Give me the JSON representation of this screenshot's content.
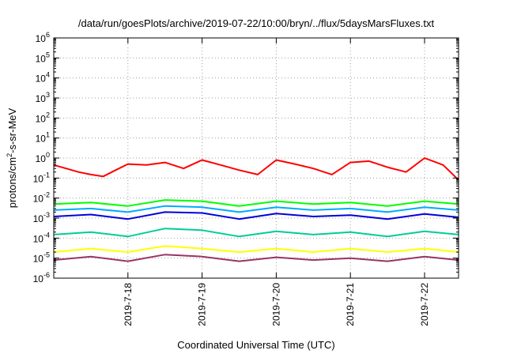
{
  "chart_data": {
    "type": "line",
    "title": "/data/run/goesPlots/archive/2019-07-22/10:00/bryn/../flux/5daysMarsFluxes.txt",
    "xlabel": "Coordinated Universal Time (UTC)",
    "ylabel": {
      "pre": "protons/cm",
      "sup": "2",
      "post": "-s-sr-MeV"
    },
    "yscale": "log",
    "ylim": [
      1e-06,
      1000000.0
    ],
    "y_ticks": [
      {
        "base": "10",
        "exp": "6"
      },
      {
        "base": "10",
        "exp": "5"
      },
      {
        "base": "10",
        "exp": "4"
      },
      {
        "base": "10",
        "exp": "3"
      },
      {
        "base": "10",
        "exp": "2"
      },
      {
        "base": "10",
        "exp": "1"
      },
      {
        "base": "10",
        "exp": "0"
      },
      {
        "base": "10",
        "exp": "-1"
      },
      {
        "base": "10",
        "exp": "-2"
      },
      {
        "base": "10",
        "exp": "-3"
      },
      {
        "base": "10",
        "exp": "-4"
      },
      {
        "base": "10",
        "exp": "-5"
      },
      {
        "base": "10",
        "exp": "-6"
      }
    ],
    "xlim": [
      "2019-07-17 00:00",
      "2019-07-22 11:00"
    ],
    "x_ticks": [
      "2019-7-18",
      "2019-7-19",
      "2019-7-20",
      "2019-7-21",
      "2019-7-22"
    ],
    "grid": true,
    "series": [
      {
        "color": "#ff0000",
        "x": [
          "2019-07-17 00:00",
          "2019-07-17 04:00",
          "2019-07-17 08:00",
          "2019-07-17 12:00",
          "2019-07-17 16:00",
          "2019-07-17 20:00",
          "2019-07-18 00:00",
          "2019-07-18 06:00",
          "2019-07-18 12:00",
          "2019-07-18 18:00",
          "2019-07-19 00:00",
          "2019-07-19 06:00",
          "2019-07-19 12:00",
          "2019-07-19 18:00",
          "2019-07-20 00:00",
          "2019-07-20 06:00",
          "2019-07-20 12:00",
          "2019-07-20 18:00",
          "2019-07-21 00:00",
          "2019-07-21 06:00",
          "2019-07-21 12:00",
          "2019-07-21 18:00",
          "2019-07-22 00:00",
          "2019-07-22 06:00",
          "2019-07-22 11:00"
        ],
        "values": [
          0.45,
          0.3,
          0.2,
          0.15,
          0.12,
          0.25,
          0.5,
          0.45,
          0.6,
          0.3,
          0.8,
          0.45,
          0.25,
          0.15,
          0.8,
          0.5,
          0.3,
          0.15,
          0.6,
          0.7,
          0.35,
          0.2,
          1.0,
          0.45,
          0.08
        ]
      },
      {
        "color": "#00ff00",
        "x": [
          "2019-07-17 00:00",
          "2019-07-17 12:00",
          "2019-07-18 00:00",
          "2019-07-18 12:00",
          "2019-07-19 00:00",
          "2019-07-19 12:00",
          "2019-07-20 00:00",
          "2019-07-20 12:00",
          "2019-07-21 00:00",
          "2019-07-21 12:00",
          "2019-07-22 00:00",
          "2019-07-22 11:00"
        ],
        "values": [
          0.005,
          0.006,
          0.004,
          0.008,
          0.007,
          0.004,
          0.007,
          0.005,
          0.006,
          0.004,
          0.007,
          0.005
        ]
      },
      {
        "color": "#00aaff",
        "x": [
          "2019-07-17 00:00",
          "2019-07-17 12:00",
          "2019-07-18 00:00",
          "2019-07-18 12:00",
          "2019-07-19 00:00",
          "2019-07-19 12:00",
          "2019-07-20 00:00",
          "2019-07-20 12:00",
          "2019-07-21 00:00",
          "2019-07-21 12:00",
          "2019-07-22 00:00",
          "2019-07-22 11:00"
        ],
        "values": [
          0.0025,
          0.003,
          0.002,
          0.004,
          0.0035,
          0.002,
          0.0035,
          0.0025,
          0.003,
          0.002,
          0.0035,
          0.0025
        ]
      },
      {
        "color": "#0000dd",
        "x": [
          "2019-07-17 00:00",
          "2019-07-17 12:00",
          "2019-07-18 00:00",
          "2019-07-18 12:00",
          "2019-07-19 00:00",
          "2019-07-19 12:00",
          "2019-07-20 00:00",
          "2019-07-20 12:00",
          "2019-07-21 00:00",
          "2019-07-21 12:00",
          "2019-07-22 00:00",
          "2019-07-22 11:00"
        ],
        "values": [
          0.0012,
          0.0015,
          0.0009,
          0.002,
          0.0018,
          0.0009,
          0.0017,
          0.0012,
          0.0014,
          0.0009,
          0.0016,
          0.0011
        ]
      },
      {
        "color": "#00cc99",
        "x": [
          "2019-07-17 00:00",
          "2019-07-17 12:00",
          "2019-07-18 00:00",
          "2019-07-18 12:00",
          "2019-07-19 00:00",
          "2019-07-19 12:00",
          "2019-07-20 00:00",
          "2019-07-20 12:00",
          "2019-07-21 00:00",
          "2019-07-21 12:00",
          "2019-07-22 00:00",
          "2019-07-22 11:00"
        ],
        "values": [
          0.00015,
          0.0002,
          0.00012,
          0.0003,
          0.00025,
          0.00012,
          0.00022,
          0.00015,
          0.0002,
          0.00012,
          0.00022,
          0.00015
        ]
      },
      {
        "color": "#ffff00",
        "x": [
          "2019-07-17 00:00",
          "2019-07-17 12:00",
          "2019-07-18 00:00",
          "2019-07-18 12:00",
          "2019-07-19 00:00",
          "2019-07-19 12:00",
          "2019-07-20 00:00",
          "2019-07-20 12:00",
          "2019-07-21 00:00",
          "2019-07-21 12:00",
          "2019-07-22 00:00",
          "2019-07-22 11:00"
        ],
        "values": [
          2e-05,
          3e-05,
          2e-05,
          4e-05,
          3e-05,
          2e-05,
          3e-05,
          2e-05,
          3e-05,
          2e-05,
          3e-05,
          2e-05
        ]
      },
      {
        "color": "#993366",
        "x": [
          "2019-07-17 00:00",
          "2019-07-17 12:00",
          "2019-07-18 00:00",
          "2019-07-18 12:00",
          "2019-07-19 00:00",
          "2019-07-19 12:00",
          "2019-07-20 00:00",
          "2019-07-20 12:00",
          "2019-07-21 00:00",
          "2019-07-21 12:00",
          "2019-07-22 00:00",
          "2019-07-22 11:00"
        ],
        "values": [
          8e-06,
          1.2e-05,
          7e-06,
          1.5e-05,
          1.2e-05,
          7e-06,
          1.1e-05,
          8e-06,
          1e-05,
          7e-06,
          1.2e-05,
          8e-06
        ]
      }
    ]
  }
}
